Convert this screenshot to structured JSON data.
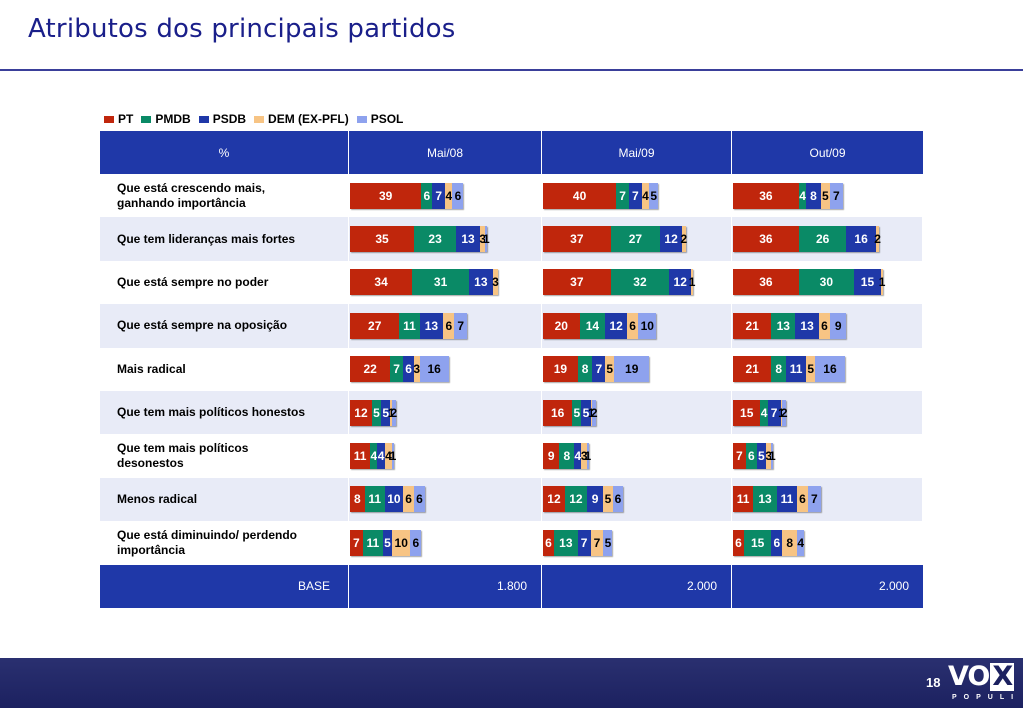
{
  "title": "Atributos dos principais partidos",
  "page_number": "18",
  "logo": {
    "main": "VO",
    "x": "X",
    "sub": "POPULI"
  },
  "chart_data": {
    "type": "bar",
    "stacked": true,
    "orientation": "horizontal",
    "legend": [
      "PT",
      "PMDB",
      "PSDB",
      "DEM (EX-PFL)",
      "PSOL"
    ],
    "colors": [
      "#c0260c",
      "#0a8a66",
      "#1f38a8",
      "#f7c484",
      "#8ea2ee"
    ],
    "label_colors": [
      "#ffffff",
      "#ffffff",
      "#ffffff",
      "#000000",
      "#000000"
    ],
    "header_label": "%",
    "periods": [
      "Mai/08",
      "Mai/09",
      "Out/09"
    ],
    "base_label": "BASE",
    "bases": [
      "1.800",
      "2.000",
      "2.000"
    ],
    "rows": [
      {
        "label": "Que está crescendo mais, ganhando importância",
        "values": [
          [
            39,
            6,
            7,
            4,
            6
          ],
          [
            40,
            7,
            7,
            4,
            5
          ],
          [
            36,
            4,
            8,
            5,
            7
          ]
        ]
      },
      {
        "label": "Que tem lideranças mais fortes",
        "values": [
          [
            35,
            23,
            13,
            3,
            1
          ],
          [
            37,
            27,
            12,
            2,
            null
          ],
          [
            36,
            26,
            16,
            2,
            null
          ]
        ]
      },
      {
        "label": "Que está sempre no poder",
        "values": [
          [
            34,
            31,
            13,
            3,
            null
          ],
          [
            37,
            32,
            12,
            1,
            null
          ],
          [
            36,
            30,
            15,
            1,
            null
          ]
        ]
      },
      {
        "label": "Que está sempre na oposição",
        "values": [
          [
            27,
            11,
            13,
            6,
            7
          ],
          [
            20,
            14,
            12,
            6,
            10
          ],
          [
            21,
            13,
            13,
            6,
            9
          ]
        ]
      },
      {
        "label": "Mais radical",
        "values": [
          [
            22,
            7,
            6,
            3,
            16
          ],
          [
            19,
            8,
            7,
            5,
            19
          ],
          [
            21,
            8,
            11,
            5,
            16
          ]
        ]
      },
      {
        "label": "Que tem mais políticos honestos",
        "values": [
          [
            12,
            5,
            5,
            1,
            2
          ],
          [
            16,
            5,
            5,
            1,
            2
          ],
          [
            15,
            4,
            7,
            1,
            2
          ]
        ]
      },
      {
        "label": "Que tem mais políticos desonestos",
        "values": [
          [
            11,
            4,
            4,
            4,
            1
          ],
          [
            9,
            8,
            4,
            3,
            1
          ],
          [
            7,
            6,
            5,
            3,
            1
          ]
        ]
      },
      {
        "label": "Menos radical",
        "values": [
          [
            8,
            11,
            10,
            6,
            6
          ],
          [
            12,
            12,
            9,
            5,
            6
          ],
          [
            11,
            13,
            11,
            6,
            7
          ]
        ]
      },
      {
        "label": "Que está diminuindo/ perdendo importância",
        "values": [
          [
            7,
            11,
            5,
            10,
            6
          ],
          [
            6,
            13,
            7,
            7,
            5
          ],
          [
            6,
            15,
            6,
            8,
            4
          ]
        ]
      }
    ]
  }
}
